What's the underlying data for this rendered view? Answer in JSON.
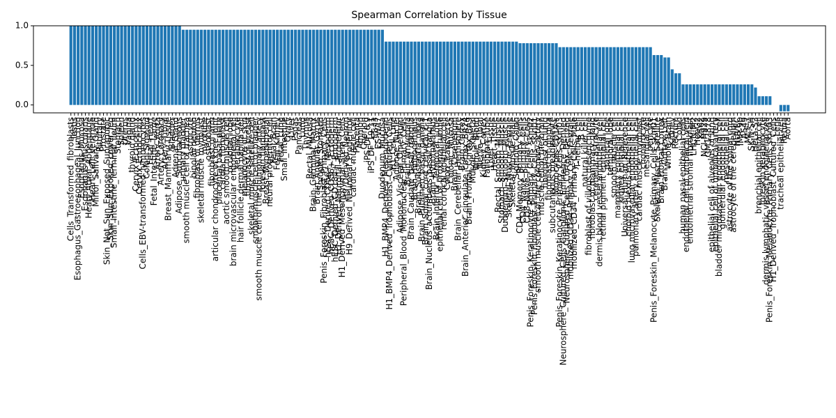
{
  "chart_data": {
    "type": "bar",
    "title": "Spearman Correlation by Tissue",
    "color": "#1f77b4",
    "ylim": [
      -0.1,
      1.0
    ],
    "yticks": [
      {
        "value": 0,
        "label": "0.0"
      },
      {
        "value": 0.5,
        "label": "0.5"
      },
      {
        "value": 1,
        "label": "1.0"
      }
    ],
    "categories": [
      "Cells_Transformed_fibroblasts",
      "Testis",
      "Esophagus_Gastroesophageal_Junction",
      "Esophagus_Mucosa",
      "Esophagus_Muscularis",
      "Heart_Atrial_Appendage",
      "Heart_Left_Ventricle",
      "Minor_Salivary_Gland",
      "Pituitary",
      "Prostate",
      "Skin_Not_Sun_Exposed_Suprapubic",
      "Skin_Sun_Exposed_Lower_leg",
      "Small_Intestine_Terminal_Ileum",
      "Stomach",
      "Spleen",
      "Uterus",
      "Vagina",
      "thyroid gland",
      "Cervix_Ectocervix",
      "Cervix_Endocervix",
      "Cells_EBV-transformed_lymphocytes",
      "Colon_Sigmoid",
      "Fetal_Heart",
      "Fetal_Intestine_Large",
      "Artery_Aorta",
      "Artery_Coronary",
      "Artery_Tibial",
      "Breast_Mammary_Tissue",
      "Bladder",
      "Adrenal_Gland",
      "Adipose_Subcutaneous",
      "urinary bladder",
      "smooth muscle cell of trachea",
      "astrocyte",
      "bipolar neuron",
      "fibroblast of dermis",
      "skeletal muscle myoblast",
      "myotube",
      "osteoblast",
      "fibroblast of arm",
      "articular chondrocyte of knee joint",
      "placental basal plate",
      "cardiac fibroblast",
      "aortic smooth muscle cell",
      "occipital lobe",
      "brain microvascular endothelial cell",
      "keratinocyte",
      "hair follicle dermal papilla cell",
      "melanocyte of skin",
      "fibroblast of breast",
      "skeletal muscle satellite cell",
      "smooth muscle cell of bladder",
      "smooth muscle cell of the pulmonary artery",
      "foreskin fibroblast",
      "Breast_Myoepithelial",
      "neural progenitor cell",
      "Fetal_Brain",
      "Fetal_Kidney",
      "Fetal_Lung",
      "Small_Intestine",
      "Ovary",
      "Liver",
      "Psoas",
      "Pancreas",
      "Lung",
      "Thymus",
      "Rectal_Mucosa",
      "Brain_Germinal_Matrix",
      "Brain_Angular_Gyrus",
      "Smooth_Stomach",
      "Penis_Foreskin_Fibroblast_Primary_Cells",
      "hESC_Derived_CD56+_Mesoderm",
      "hESC_Derived_CD56+_Ectoderm",
      "hESC_Derived_CD184+_Endoderm",
      "H1_Derived_Neuronal_Progenitor",
      "H1_Derived_Mesenchymal_Stem_Cells",
      "H9_Derived_Neuron",
      "H9_Derived_Neuronal_Progenitor",
      "cardiac muscle cell",
      "Placenta",
      "Amnion",
      "Chorion",
      "iPS_DF_6.9",
      "iPS_DF_19.11",
      "ES-I3",
      "ES-WA7",
      "Duodenum_Mucosa",
      "H1_BMP4_Derived_Mesendoderm",
      "H1_BMP4_Derived_Trophoblast_Cultured_Cells",
      "H1_Cell_Line",
      "Adipose_Nuclei",
      "Adipose_Visceral_Omentum",
      "Peripheral_Blood_Mononuclear_Primary_Cells",
      "Brain_Amygdala",
      "Brain_Caudate_basal_ganglia",
      "Brain_Hippocampus",
      "Brain_Substantia_nigra",
      "Brain_Putamen_basal_ganglia",
      "Brain_Spinal_cord_cervical_c-1",
      "Brain_Nucleus_accumbens_basal_ganglia",
      "Brain_Hypothalamus",
      "Brain_Inferior_Temporal_Lobe",
      "epithelial cell of proximal tubule",
      "renal cortical epithelial cell",
      "Colon_Transverse",
      "Colonic_Mucosa",
      "Brain_Cerebellum",
      "Brain_Cerebellar_Hemisphere",
      "Brain_Cortex",
      "Brain_Anterior_cingulate_cortex_BA24",
      "Brain_Frontal_Cortex_BA9",
      "Muscle_Skeletal",
      "Whole_Blood",
      "Nerve_Tibial",
      "Kidney_Cortex",
      "Fallopian_Tube",
      "Liver_Tissue",
      "Heart_Tissue",
      "Rectal_Smooth_Muscle",
      "Stomach_Smooth_Muscle",
      "Duodenum_Smooth_Muscle",
      "Skeletal_Muscle_Female",
      "Skeletal_Muscle_Male",
      "Sigmoid_Colon",
      "CD4_Memory_Primary_Cells",
      "CD4_Naive_Primary_Cells",
      "CD8_Naive_Primary_Cells",
      "Penis_Foreskin_Keratinocyte_Primary_Cells_skin02",
      "Penis_Foreskin_Fibroblast_Primary_Cells_skin01",
      "smooth muscle cell of the coronary artery",
      "muscle cell of the brain",
      "fibroblast of lung",
      "fibroblast of gingiva",
      "subcutaneous preadipocyte",
      "Monocytes-CD14+",
      "Penis_Foreskin_Keratinocyte_Primary_Cells_skin03",
      "Neurosphere_Cultured_Cells_Ganglionic_Eminence_Derived",
      "Neurosphere_Cultured_Cells_Cortex_Derived",
      "mobilized_CD34_Primary_Cells_Female",
      "mobilized_CD34_Primary_Cells_Male",
      "T-helper cell",
      "B cell",
      "natural killer cell",
      "fibroblast of villous mesenchyme",
      "fibroblast of mammary gland",
      "cerebellar astrocyte",
      "dermis blood vessel endothelial cell",
      "retinal pigment epithelial cell",
      "parietal lobe",
      "temporal lobe",
      "smooth muscle cell",
      "mammary epithelial cell",
      "kidney epithelial cell",
      "Universal_Human_Reference",
      "choroid plexus epithelial cell",
      "lung microvascular endothelial cell",
      "pulmonary artery endothelial cell",
      "cardiac muscle myoblast",
      "chondrocyte",
      "mesangial cell",
      "pericyte",
      "Penis_Foreskin_Melanocyte_Primary_Cells_skin01",
      "Skeletal_Muscle_Satellite",
      "Brain_Frontal_Cortex",
      "Brain_Cortex_Left",
      "Whole_Brain",
      "Kidney",
      "Rectum",
      "Colon",
      "human nasal epithelial cells",
      "endothelial cell of umbilical vein",
      "endometrial stromal fibroblast",
      "LHCN-M2",
      "HepG2",
      "K562",
      "NCI-H929",
      "GM12878",
      "epithelial cell of alveolus of lung",
      "epithelial cell of umbilical artery",
      "bladder microvascular endothelial cell",
      "glomerular endothelial cell",
      "mesothelial cell",
      "astrocyte of the spinal cord",
      "astrocyte of the cerebellum",
      "HUVEC",
      "IMR-90",
      "A549",
      "MCF-7",
      "SK-N-SH",
      "HeLa-S3",
      "bronchial epithelial cell",
      "foreskin keratinocyte",
      "dermis lymphatic vessel endothelial cell",
      "Penis_Foreskin_Melanocyte_Primary_Cells_skin03",
      "H1_Derived_Trophoblast_Cultured_Cells",
      "Lens",
      "tracheal epithelial cell",
      "Retina",
      "Aorta"
    ],
    "values": [
      1,
      1,
      1,
      1,
      1,
      1,
      1,
      1,
      1,
      1,
      1,
      1,
      1,
      1,
      1,
      1,
      1,
      1,
      1,
      1,
      1,
      1,
      1,
      1,
      1,
      1,
      1,
      1,
      1,
      1,
      1,
      0.95,
      0.95,
      0.95,
      0.95,
      0.95,
      0.95,
      0.95,
      0.95,
      0.95,
      0.95,
      0.95,
      0.95,
      0.95,
      0.95,
      0.95,
      0.95,
      0.95,
      0.95,
      0.95,
      0.95,
      0.95,
      0.95,
      0.95,
      0.95,
      0.95,
      0.95,
      0.95,
      0.95,
      0.95,
      0.95,
      0.95,
      0.95,
      0.95,
      0.95,
      0.95,
      0.95,
      0.95,
      0.95,
      0.95,
      0.95,
      0.95,
      0.95,
      0.95,
      0.95,
      0.95,
      0.95,
      0.95,
      0.95,
      0.95,
      0.95,
      0.95,
      0.95,
      0.95,
      0.95,
      0.95,
      0.95,
      0.8,
      0.8,
      0.8,
      0.8,
      0.8,
      0.8,
      0.8,
      0.8,
      0.8,
      0.8,
      0.8,
      0.8,
      0.8,
      0.8,
      0.8,
      0.8,
      0.8,
      0.8,
      0.8,
      0.8,
      0.8,
      0.8,
      0.8,
      0.8,
      0.8,
      0.8,
      0.8,
      0.8,
      0.8,
      0.8,
      0.8,
      0.8,
      0.8,
      0.8,
      0.8,
      0.8,
      0.8,
      0.78,
      0.78,
      0.78,
      0.78,
      0.78,
      0.78,
      0.78,
      0.78,
      0.78,
      0.78,
      0.78,
      0.73,
      0.73,
      0.73,
      0.73,
      0.73,
      0.73,
      0.73,
      0.73,
      0.73,
      0.73,
      0.73,
      0.73,
      0.73,
      0.73,
      0.73,
      0.73,
      0.73,
      0.73,
      0.73,
      0.73,
      0.73,
      0.73,
      0.73,
      0.73,
      0.73,
      0.73,
      0.63,
      0.63,
      0.63,
      0.6,
      0.6,
      0.45,
      0.4,
      0.4,
      0.26,
      0.26,
      0.26,
      0.26,
      0.26,
      0.26,
      0.26,
      0.26,
      0.26,
      0.26,
      0.26,
      0.26,
      0.26,
      0.26,
      0.26,
      0.26,
      0.26,
      0.26,
      0.26,
      0.26,
      0.22,
      0.11,
      0.11,
      0.11,
      0.11,
      0,
      0,
      -0.08,
      -0.08,
      -0.08
    ]
  }
}
